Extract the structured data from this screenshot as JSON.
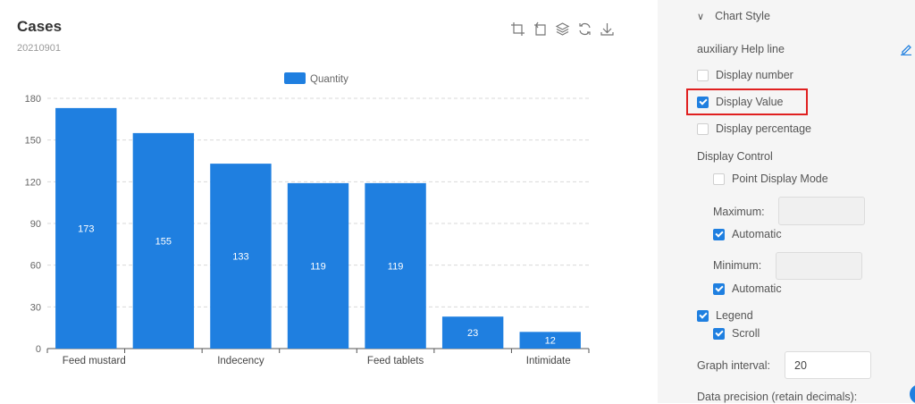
{
  "chart": {
    "title": "Cases",
    "subtitle": "20210901",
    "toolbox_icons": [
      "area-zoom-icon",
      "zoom-reset-icon",
      "data-view-icon",
      "restore-icon",
      "download-icon"
    ]
  },
  "chart_data": {
    "type": "bar",
    "categories": [
      "Feed mustard",
      "",
      "Indecency",
      "",
      "Feed tablets",
      "",
      "Intimidate"
    ],
    "series": [
      {
        "name": "Quantity",
        "values": [
          173,
          155,
          133,
          119,
          119,
          23,
          12
        ],
        "color": "#1f7fe0"
      }
    ],
    "ylim": [
      0,
      180
    ],
    "yticks": [
      0,
      30,
      60,
      90,
      120,
      150,
      180
    ],
    "grid": true,
    "legend": "top-center",
    "show_values": true
  },
  "settings": {
    "section_title": "Chart Style",
    "auxiliary_label": "auxiliary Help line",
    "display_number": {
      "label": "Display number",
      "checked": false
    },
    "display_value": {
      "label": "Display Value",
      "checked": true
    },
    "display_percentage": {
      "label": "Display percentage",
      "checked": false
    },
    "display_control_label": "Display Control",
    "point_display_mode": {
      "label": "Point Display Mode",
      "checked": false
    },
    "maximum_label": "Maximum:",
    "maximum_value": "",
    "maximum_automatic": {
      "label": "Automatic",
      "checked": true
    },
    "minimum_label": "Minimum:",
    "minimum_value": "",
    "minimum_automatic": {
      "label": "Automatic",
      "checked": true
    },
    "legend": {
      "label": "Legend",
      "checked": true
    },
    "scroll": {
      "label": "Scroll",
      "checked": true
    },
    "graph_interval_label": "Graph interval:",
    "graph_interval_value": "20",
    "data_precision_label": "Data precision (retain decimals):"
  },
  "colors": {
    "accent": "#1f7fe0",
    "highlight_border": "#e02020",
    "panel_bg": "#f5f5f5"
  }
}
